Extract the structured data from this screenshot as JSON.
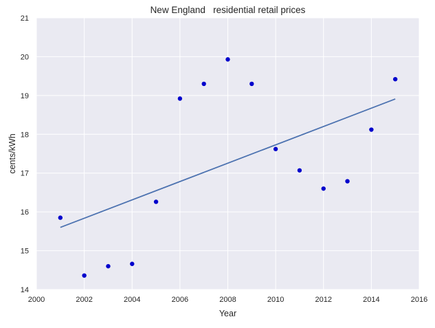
{
  "chart_data": {
    "type": "scatter",
    "title": "New England   residential retail prices",
    "xlabel": "Year",
    "ylabel": "cents/kWh",
    "xlim": [
      2000,
      2016
    ],
    "ylim": [
      14,
      21
    ],
    "xticks": [
      "2000",
      "2002",
      "2004",
      "2006",
      "2008",
      "2010",
      "2012",
      "2014",
      "2016"
    ],
    "yticks": [
      "14",
      "15",
      "16",
      "17",
      "18",
      "19",
      "20",
      "21"
    ],
    "grid": true,
    "legend": "none",
    "colors": {
      "plot_background": "#eaeaf2",
      "grid": "#ffffff",
      "points": "#0000cc",
      "trend_line": "#4c72b0"
    },
    "series": [
      {
        "kind": "scatter",
        "x": [
          2001,
          2002,
          2003,
          2004,
          2005,
          2006,
          2007,
          2008,
          2009,
          2010,
          2011,
          2012,
          2013,
          2014,
          2015
        ],
        "y": [
          15.85,
          14.36,
          14.6,
          14.66,
          16.26,
          18.92,
          19.3,
          19.93,
          19.3,
          17.62,
          17.07,
          16.6,
          16.79,
          18.12,
          19.42
        ]
      },
      {
        "kind": "line",
        "x": [
          2001,
          2015
        ],
        "y": [
          15.6,
          18.91
        ]
      }
    ]
  }
}
